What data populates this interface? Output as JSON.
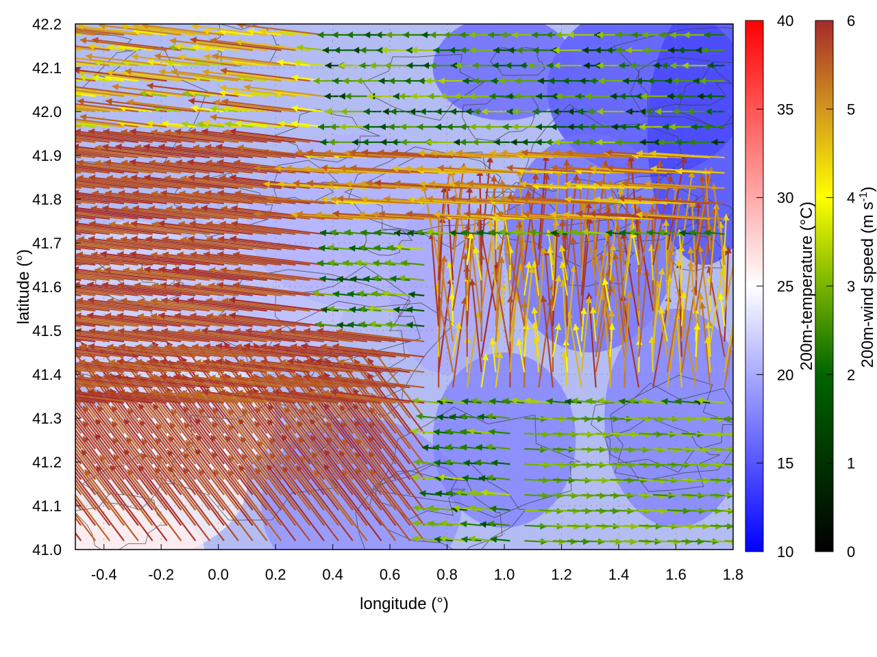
{
  "chart_data": {
    "type": "quiver",
    "xlabel": "longitude (°)",
    "ylabel": "latitude (°)",
    "xlim": [
      -0.5,
      1.8
    ],
    "ylim": [
      41.0,
      42.2
    ],
    "xticks": [
      "-0.4",
      "-0.2",
      "0.0",
      "0.2",
      "0.4",
      "0.6",
      "0.8",
      "1.0",
      "1.2",
      "1.4",
      "1.6",
      "1.8"
    ],
    "yticks": [
      "41.0",
      "41.1",
      "41.2",
      "41.3",
      "41.4",
      "41.5",
      "41.6",
      "41.7",
      "41.8",
      "41.9",
      "42.0",
      "42.1",
      "42.2"
    ],
    "grid": true,
    "colorbars": [
      {
        "label": "200m-temperature (°C)",
        "range": [
          10,
          40
        ],
        "ticks": [
          "10",
          "15",
          "20",
          "25",
          "30",
          "35",
          "40"
        ],
        "colors": [
          "#0000ff",
          "#ffffff",
          "#ff0000"
        ]
      },
      {
        "label_main": "200m-wind speed (m s",
        "label_sup": "-1",
        "label_end": ")",
        "range": [
          0,
          6
        ],
        "ticks": [
          "0",
          "1",
          "2",
          "3",
          "4",
          "5",
          "6"
        ],
        "colors": [
          "#000000",
          "#006400",
          "#78b400",
          "#ffff00",
          "#d2961e",
          "#a52a2a"
        ]
      }
    ],
    "temperature_field_approx": [
      {
        "region": "southwest lowland",
        "temperature": 25
      },
      {
        "region": "west interior",
        "temperature": 21
      },
      {
        "region": "central",
        "temperature": 19
      },
      {
        "region": "northeast highland",
        "temperature": 14
      }
    ],
    "wind_field_approx": [
      {
        "region": "west (lon -0.5 to 0.4)",
        "speed": 6,
        "direction": "westward"
      },
      {
        "region": "north-central band (lat 41.7-41.9)",
        "speed": 4.5,
        "direction": "westward"
      },
      {
        "region": "northeast",
        "speed": 1.5,
        "direction": "westward"
      },
      {
        "region": "southeast (lon 1.2 to 1.8, lat 41.0-41.3)",
        "speed": 2.8,
        "direction": "eastward"
      },
      {
        "region": "central-east (lat 41.4-41.7)",
        "speed": 5.5,
        "direction": "northward"
      }
    ]
  }
}
